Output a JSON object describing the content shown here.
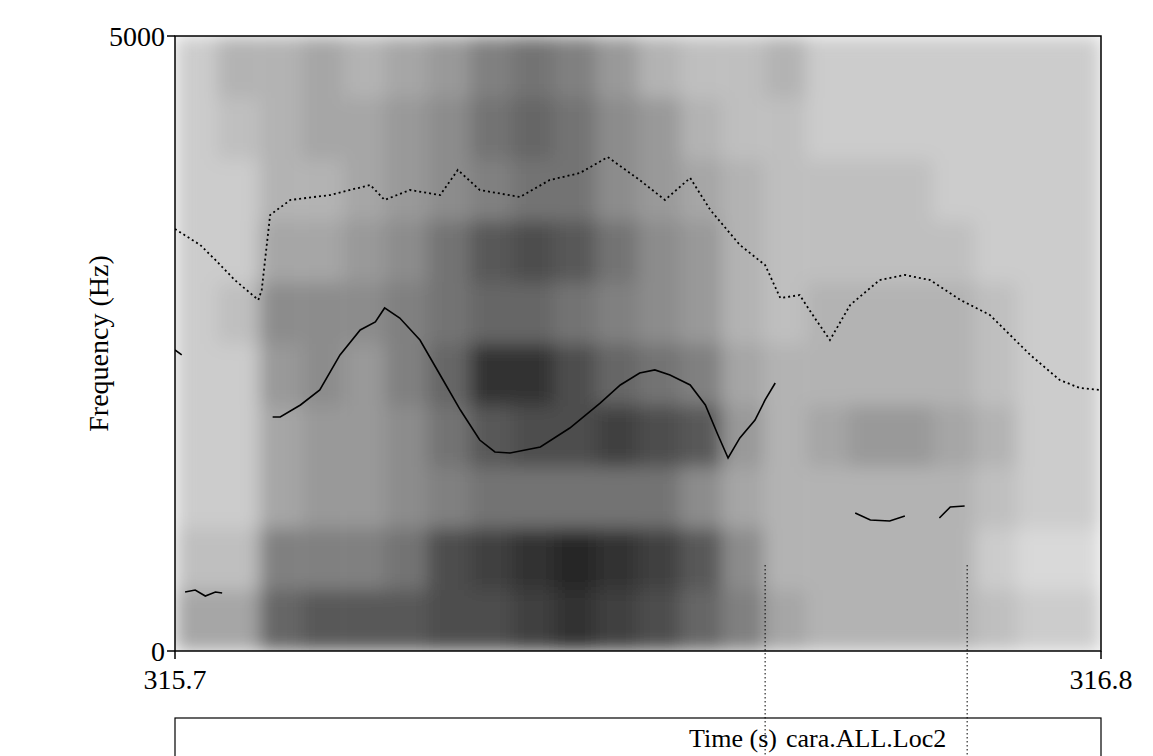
{
  "chart_data": {
    "type": "spectrogram",
    "x_label": "Time (s)",
    "y_label": "Frequency (Hz)",
    "xlim": [
      315.7,
      316.8
    ],
    "ylim": [
      0,
      5000
    ],
    "xticks": [
      315.7,
      316.8
    ],
    "yticks": [
      0,
      5000
    ],
    "grid": false,
    "time_bins": [
      315.7,
      315.75,
      315.8,
      315.85,
      315.9,
      315.95,
      316.0,
      316.05,
      316.1,
      316.15,
      316.2,
      316.25,
      316.3,
      316.35,
      316.4,
      316.45,
      316.5,
      316.55,
      316.6,
      316.65,
      316.7,
      316.75,
      316.8
    ],
    "frequency_bins": [
      0,
      500,
      1000,
      1500,
      2000,
      2500,
      3000,
      3500,
      4000,
      4500,
      5000
    ],
    "cells": [
      [
        0.35,
        0.35,
        0.6,
        0.65,
        0.65,
        0.65,
        0.7,
        0.7,
        0.75,
        0.8,
        0.75,
        0.7,
        0.6,
        0.5,
        0.35,
        0.3,
        0.3,
        0.3,
        0.3,
        0.25,
        0.2,
        0.2
      ],
      [
        0.25,
        0.25,
        0.5,
        0.5,
        0.5,
        0.55,
        0.7,
        0.75,
        0.8,
        0.85,
        0.8,
        0.75,
        0.65,
        0.45,
        0.3,
        0.3,
        0.3,
        0.3,
        0.3,
        0.2,
        0.15,
        0.15
      ],
      [
        0.2,
        0.2,
        0.35,
        0.4,
        0.4,
        0.45,
        0.5,
        0.55,
        0.55,
        0.55,
        0.55,
        0.55,
        0.45,
        0.35,
        0.3,
        0.3,
        0.3,
        0.3,
        0.3,
        0.25,
        0.2,
        0.2
      ],
      [
        0.2,
        0.2,
        0.35,
        0.4,
        0.4,
        0.45,
        0.55,
        0.65,
        0.7,
        0.7,
        0.75,
        0.7,
        0.65,
        0.4,
        0.3,
        0.35,
        0.4,
        0.4,
        0.35,
        0.3,
        0.2,
        0.2
      ],
      [
        0.2,
        0.2,
        0.4,
        0.45,
        0.4,
        0.5,
        0.6,
        0.8,
        0.8,
        0.7,
        0.6,
        0.55,
        0.5,
        0.35,
        0.3,
        0.3,
        0.3,
        0.3,
        0.3,
        0.25,
        0.2,
        0.2
      ],
      [
        0.2,
        0.25,
        0.45,
        0.45,
        0.45,
        0.5,
        0.55,
        0.6,
        0.6,
        0.55,
        0.5,
        0.45,
        0.4,
        0.3,
        0.25,
        0.3,
        0.3,
        0.3,
        0.3,
        0.25,
        0.2,
        0.2
      ],
      [
        0.2,
        0.2,
        0.35,
        0.35,
        0.4,
        0.45,
        0.55,
        0.65,
        0.7,
        0.65,
        0.55,
        0.45,
        0.4,
        0.3,
        0.25,
        0.25,
        0.25,
        0.25,
        0.25,
        0.2,
        0.2,
        0.2
      ],
      [
        0.2,
        0.2,
        0.3,
        0.3,
        0.35,
        0.4,
        0.45,
        0.5,
        0.55,
        0.55,
        0.45,
        0.4,
        0.35,
        0.3,
        0.25,
        0.25,
        0.25,
        0.25,
        0.2,
        0.2,
        0.2,
        0.2
      ],
      [
        0.2,
        0.25,
        0.3,
        0.35,
        0.35,
        0.4,
        0.45,
        0.55,
        0.6,
        0.55,
        0.45,
        0.4,
        0.3,
        0.25,
        0.25,
        0.2,
        0.2,
        0.2,
        0.2,
        0.2,
        0.2,
        0.2
      ],
      [
        0.2,
        0.3,
        0.3,
        0.35,
        0.3,
        0.35,
        0.4,
        0.5,
        0.55,
        0.5,
        0.4,
        0.3,
        0.25,
        0.25,
        0.3,
        0.2,
        0.2,
        0.2,
        0.2,
        0.2,
        0.2,
        0.2
      ]
    ],
    "series": [
      {
        "type": "line",
        "line_style": "solid",
        "color": "#000000",
        "x": [
          315.7,
          315.708,
          null,
          315.712,
          315.724,
          315.736,
          315.748,
          315.756,
          null,
          315.816,
          315.825,
          315.849,
          315.872,
          315.896,
          315.92,
          315.938,
          315.949,
          315.967,
          315.991,
          316.015,
          316.039,
          316.062,
          316.08,
          316.098,
          316.134,
          316.169,
          316.205,
          316.229,
          316.252,
          316.27,
          316.288,
          316.312,
          316.33,
          316.345,
          316.357,
          316.371,
          316.389,
          316.401,
          316.413,
          null,
          316.508,
          316.526,
          316.549,
          316.567,
          null,
          316.608,
          316.621,
          316.638
        ],
        "values": [
          2447,
          2407,
          null,
          480,
          496,
          447,
          480,
          472,
          null,
          1902,
          1902,
          2000,
          2122,
          2407,
          2610,
          2675,
          2789,
          2707,
          2528,
          2244,
          1959,
          1715,
          1618,
          1610,
          1659,
          1813,
          2016,
          2163,
          2260,
          2285,
          2244,
          2163,
          2000,
          1756,
          1569,
          1732,
          1878,
          2041,
          2179,
          null,
          1122,
          1065,
          1057,
          1098,
          null,
          1081,
          1171,
          1179
        ]
      },
      {
        "type": "line",
        "line_style": "dotted",
        "color": "#000000",
        "x": [
          315.7,
          315.73,
          315.748,
          315.771,
          315.799,
          315.803,
          315.813,
          315.837,
          315.884,
          315.932,
          315.949,
          315.979,
          316.015,
          316.036,
          316.062,
          316.11,
          316.145,
          316.181,
          316.214,
          316.252,
          316.282,
          316.312,
          316.336,
          316.371,
          316.401,
          316.419,
          316.442,
          316.46,
          316.478,
          316.502,
          316.537,
          316.567,
          316.597,
          316.633,
          316.668,
          316.692,
          316.716,
          316.751,
          316.775,
          316.8
        ],
        "values": [
          3431,
          3301,
          3179,
          3016,
          2854,
          2935,
          3545,
          3667,
          3707,
          3789,
          3667,
          3748,
          3707,
          3911,
          3748,
          3691,
          3829,
          3886,
          4016,
          3829,
          3667,
          3846,
          3585,
          3301,
          3138,
          2870,
          2894,
          2707,
          2528,
          2813,
          3016,
          3057,
          3016,
          2854,
          2732,
          2569,
          2407,
          2203,
          2138,
          2122
        ]
      }
    ],
    "tier": {
      "boundaries": [
        316.401,
        316.641
      ],
      "label": "cara.ALL.Loc2"
    }
  }
}
